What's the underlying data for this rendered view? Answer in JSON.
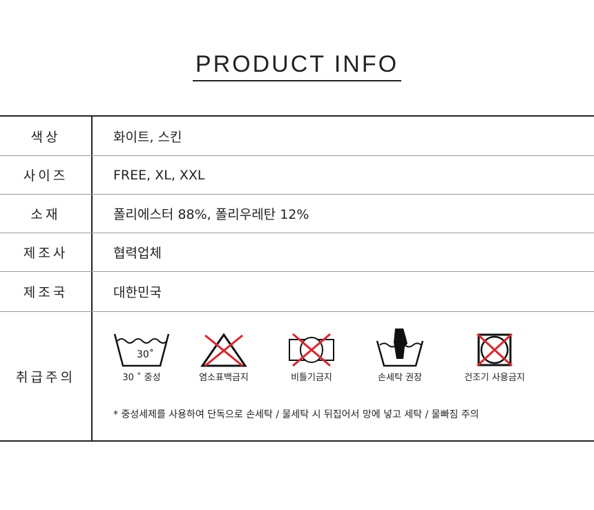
{
  "title": "PRODUCT INFO",
  "rows": [
    {
      "label": "색상",
      "value": "화이트, 스킨"
    },
    {
      "label": "사이즈",
      "value": "FREE, XL, XXL"
    },
    {
      "label": "소재",
      "value": "폴리에스터 88%, 폴리우레탄 12%"
    },
    {
      "label": "제조사",
      "value": "협력업체"
    },
    {
      "label": "제조국",
      "value": "대한민국"
    }
  ],
  "care": {
    "label": "취급주의",
    "icons": [
      {
        "icon": "wash-30-icon",
        "caption": "30 ˚ 중성",
        "temp": "30˚"
      },
      {
        "icon": "no-bleach-icon",
        "caption": "염소표백금지"
      },
      {
        "icon": "no-wring-icon",
        "caption": "비틀기금지"
      },
      {
        "icon": "hand-wash-icon",
        "caption": "손세탁 권장"
      },
      {
        "icon": "no-tumble-dry-icon",
        "caption": "건조기 사용금지"
      }
    ],
    "note": "* 중성세제를 사용하여 단독으로 손세탁 / 물세탁 시 뒤집어서 망에 넣고 세탁 / 물빠짐 주의",
    "cross_color": "#e0242b"
  }
}
